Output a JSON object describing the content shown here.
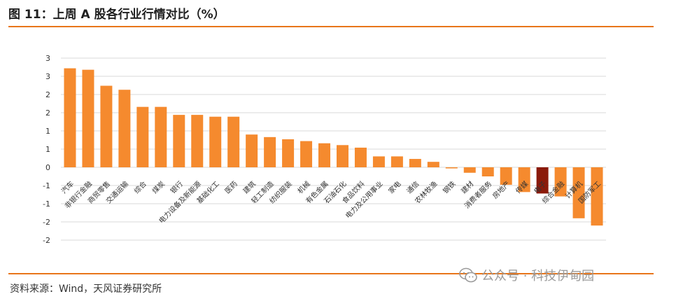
{
  "figure": {
    "title": "图 11：上周 A 股各行业行情对比（%）",
    "source": "资料来源：Wind，天风证券研究所",
    "watermark": "公众号 · 科技伊甸园"
  },
  "colors": {
    "accent_rule": "#e8751a",
    "bar_default": "#f58a2e",
    "bar_highlight": "#8b1a0a",
    "grid": "#d9d9d9"
  },
  "chart_data": {
    "type": "bar",
    "title": "",
    "xlabel": "",
    "ylabel": "",
    "ylim": [
      -2.0,
      3.0
    ],
    "y_ticks": [
      3.0,
      2.5,
      2.0,
      1.5,
      1.0,
      0.5,
      0.0,
      -0.5,
      -1.0,
      -1.5,
      -2.0
    ],
    "y_tick_labels": [
      "3",
      "3",
      "2",
      "2",
      "1",
      "1",
      "0",
      "-1",
      "-1",
      "-2",
      "-2"
    ],
    "highlight_category": "电子",
    "categories": [
      "汽车",
      "非银行金融",
      "商贸零售",
      "交通运输",
      "综合",
      "煤炭",
      "银行",
      "电力设备及新能源",
      "基础化工",
      "医药",
      "建筑",
      "轻工制造",
      "纺织服装",
      "机械",
      "有色金属",
      "石油石化",
      "食品饮料",
      "电力及公用事业",
      "家电",
      "通信",
      "农林牧渔",
      "钢铁",
      "建材",
      "消费者服务",
      "房地产",
      "传媒",
      "电子",
      "综合金融",
      "计算机",
      "国防军工"
    ],
    "values": [
      2.72,
      2.68,
      2.24,
      2.13,
      1.66,
      1.66,
      1.44,
      1.44,
      1.39,
      1.39,
      0.9,
      0.83,
      0.77,
      0.72,
      0.66,
      0.61,
      0.54,
      0.3,
      0.3,
      0.23,
      0.15,
      -0.03,
      -0.15,
      -0.25,
      -0.48,
      -0.68,
      -0.72,
      -0.8,
      -1.4,
      -1.6
    ]
  }
}
